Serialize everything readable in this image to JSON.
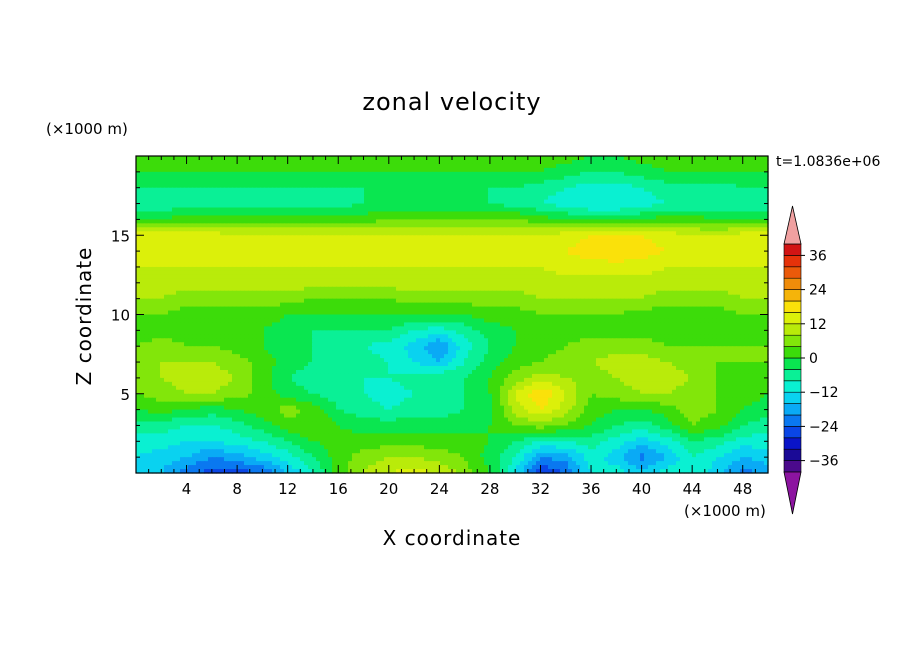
{
  "title": "zonal velocity",
  "xlabel": "X coordinate",
  "ylabel": "Z coordinate",
  "xunit": "(×1000 m)",
  "yunit": "(×1000 m)",
  "time_label": "t=1.0836e+06",
  "colorbar": {
    "tick_labels": [
      "36",
      "24",
      "12",
      "0",
      "−12",
      "−24",
      "−36"
    ],
    "tick_values": [
      36,
      24,
      12,
      0,
      -12,
      -24,
      -36
    ],
    "levels": [
      -40,
      -36,
      -32,
      -28,
      -24,
      -20,
      -16,
      -12,
      -8,
      -4,
      0,
      4,
      8,
      12,
      16,
      20,
      24,
      28,
      32,
      36,
      40
    ],
    "colors": [
      "#4b0a8c",
      "#1a0a96",
      "#0a14c8",
      "#0a46e6",
      "#0a78f0",
      "#0aaaf5",
      "#0ad2f0",
      "#0af0d2",
      "#0af096",
      "#0ae650",
      "#3cdc0a",
      "#82e60a",
      "#b9eb0a",
      "#dcf00a",
      "#fae10a",
      "#f5b40a",
      "#f08c0a",
      "#eb5a0a",
      "#e6320a",
      "#d21414"
    ],
    "under_color": "#8c14a0",
    "over_color": "#f0a0a0"
  },
  "chart_data": {
    "type": "heatmap",
    "title": "zonal velocity",
    "xlabel": "X coordinate",
    "ylabel": "Z coordinate",
    "x_units": "(×1000 m)",
    "y_units": "(×1000 m)",
    "xlim": [
      0,
      50
    ],
    "ylim": [
      0,
      20
    ],
    "x_ticks": [
      4,
      8,
      12,
      16,
      20,
      24,
      28,
      32,
      36,
      40,
      44,
      48
    ],
    "y_ticks": [
      5,
      10,
      15
    ],
    "x": [
      0,
      2,
      4,
      6,
      8,
      10,
      12,
      14,
      16,
      18,
      20,
      22,
      24,
      26,
      28,
      30,
      32,
      34,
      36,
      38,
      40,
      42,
      44,
      46,
      48,
      50
    ],
    "z": [
      0,
      1,
      2,
      3,
      4,
      5,
      6,
      7,
      8,
      9,
      10,
      11,
      12,
      13,
      14,
      15,
      16,
      17,
      18,
      19,
      20
    ],
    "values": [
      [
        -14,
        -16,
        -22,
        -26,
        -26,
        -24,
        -16,
        -8,
        2,
        8,
        12,
        14,
        12,
        6,
        0,
        -12,
        -28,
        -24,
        -12,
        -10,
        -14,
        -10,
        -8,
        -14,
        -22,
        -18
      ],
      [
        -12,
        -14,
        -16,
        -20,
        -18,
        -14,
        -10,
        -4,
        2,
        6,
        8,
        8,
        6,
        4,
        -2,
        -8,
        -20,
        -18,
        -10,
        -14,
        -22,
        -16,
        -8,
        -12,
        -16,
        -14
      ],
      [
        -10,
        -10,
        -12,
        -12,
        -10,
        -8,
        -4,
        0,
        2,
        2,
        2,
        2,
        2,
        2,
        0,
        -4,
        -8,
        -8,
        -6,
        -10,
        -14,
        -10,
        -4,
        -6,
        -10,
        -10
      ],
      [
        -6,
        -6,
        -8,
        -8,
        -6,
        -2,
        2,
        4,
        0,
        -2,
        -2,
        -2,
        -2,
        -2,
        0,
        4,
        6,
        4,
        0,
        -4,
        -6,
        -2,
        4,
        2,
        -4,
        -6
      ],
      [
        0,
        2,
        0,
        -2,
        0,
        2,
        6,
        2,
        -4,
        -6,
        -8,
        -6,
        -6,
        -4,
        -2,
        10,
        16,
        10,
        2,
        0,
        0,
        2,
        6,
        4,
        0,
        -2
      ],
      [
        4,
        6,
        8,
        8,
        6,
        2,
        -2,
        -4,
        -6,
        -8,
        -10,
        -8,
        -6,
        -4,
        0,
        12,
        20,
        12,
        4,
        6,
        8,
        8,
        6,
        4,
        2,
        0
      ],
      [
        6,
        8,
        10,
        10,
        8,
        2,
        -4,
        -6,
        -8,
        -8,
        -8,
        -6,
        -4,
        -4,
        0,
        6,
        10,
        8,
        6,
        8,
        10,
        10,
        8,
        4,
        2,
        2
      ],
      [
        6,
        8,
        8,
        8,
        6,
        2,
        -2,
        -4,
        -6,
        -6,
        -8,
        -12,
        -16,
        -8,
        -2,
        2,
        4,
        6,
        8,
        10,
        10,
        8,
        6,
        4,
        4,
        4
      ],
      [
        4,
        6,
        4,
        4,
        2,
        0,
        -2,
        -4,
        -6,
        -8,
        -10,
        -14,
        -20,
        -10,
        -4,
        0,
        2,
        4,
        6,
        6,
        6,
        4,
        4,
        4,
        4,
        4
      ],
      [
        2,
        2,
        2,
        0,
        0,
        0,
        -2,
        -4,
        -4,
        -4,
        -4,
        -8,
        -10,
        -6,
        -2,
        0,
        2,
        2,
        2,
        2,
        2,
        2,
        2,
        2,
        2,
        2
      ],
      [
        4,
        4,
        2,
        2,
        2,
        2,
        0,
        0,
        0,
        0,
        0,
        0,
        0,
        0,
        2,
        2,
        4,
        4,
        4,
        4,
        2,
        2,
        2,
        2,
        4,
        4
      ],
      [
        8,
        8,
        6,
        6,
        6,
        6,
        6,
        4,
        4,
        4,
        4,
        6,
        6,
        6,
        6,
        6,
        8,
        8,
        8,
        8,
        8,
        6,
        6,
        6,
        8,
        8
      ],
      [
        10,
        10,
        10,
        10,
        10,
        10,
        10,
        10,
        10,
        10,
        10,
        10,
        10,
        10,
        10,
        10,
        10,
        10,
        10,
        10,
        10,
        10,
        10,
        10,
        10,
        10
      ],
      [
        12,
        12,
        12,
        12,
        12,
        12,
        12,
        12,
        12,
        12,
        12,
        12,
        12,
        12,
        12,
        12,
        12,
        14,
        14,
        14,
        14,
        12,
        12,
        12,
        12,
        12
      ],
      [
        14,
        14,
        14,
        14,
        14,
        14,
        14,
        14,
        14,
        14,
        14,
        14,
        14,
        14,
        14,
        14,
        14,
        16,
        18,
        20,
        18,
        16,
        14,
        14,
        14,
        14
      ],
      [
        14,
        14,
        14,
        14,
        12,
        12,
        12,
        12,
        12,
        12,
        12,
        12,
        12,
        12,
        12,
        12,
        12,
        14,
        16,
        18,
        16,
        14,
        12,
        12,
        14,
        14
      ],
      [
        0,
        0,
        2,
        2,
        2,
        2,
        2,
        2,
        2,
        2,
        4,
        4,
        4,
        4,
        4,
        4,
        2,
        0,
        -2,
        -2,
        0,
        2,
        2,
        0,
        0,
        0
      ],
      [
        -8,
        -8,
        -6,
        -6,
        -6,
        -6,
        -6,
        -6,
        -6,
        -4,
        -4,
        -4,
        -4,
        -4,
        -4,
        -6,
        -8,
        -10,
        -12,
        -12,
        -10,
        -8,
        -8,
        -8,
        -8,
        -8
      ],
      [
        -4,
        -4,
        -4,
        -4,
        -4,
        -4,
        -4,
        -4,
        -4,
        -4,
        -4,
        -4,
        -4,
        -4,
        -4,
        -4,
        -6,
        -8,
        -10,
        -10,
        -8,
        -6,
        -6,
        -6,
        -4,
        -4
      ],
      [
        0,
        0,
        0,
        0,
        0,
        0,
        0,
        0,
        0,
        0,
        0,
        0,
        0,
        0,
        0,
        0,
        0,
        -2,
        -4,
        -4,
        -2,
        0,
        0,
        0,
        0,
        0
      ],
      [
        2,
        2,
        2,
        2,
        2,
        2,
        2,
        2,
        2,
        2,
        2,
        2,
        2,
        2,
        2,
        2,
        2,
        2,
        0,
        0,
        2,
        2,
        2,
        2,
        2,
        2
      ]
    ],
    "colorbar_range": [
      -40,
      40
    ],
    "legend_position": "right"
  }
}
